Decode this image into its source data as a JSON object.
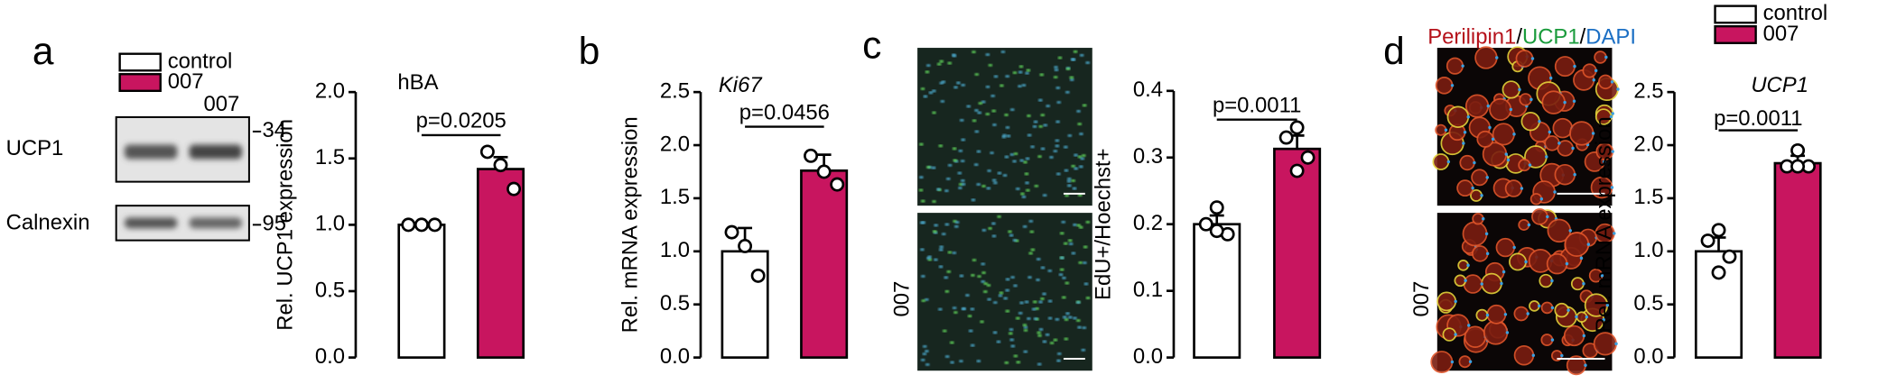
{
  "panel_labels": [
    "a",
    "b",
    "c",
    "d"
  ],
  "groups": [
    "control",
    "007"
  ],
  "group_colors": [
    "#ffffff",
    "#c8155f"
  ],
  "blot": {
    "lane_label": "007",
    "bands": [
      {
        "name": "UCP1",
        "kda": 34
      },
      {
        "name": "Calnexin",
        "kda": 95
      }
    ]
  },
  "micrographs": [
    {
      "row_label": "007"
    },
    {
      "row_label": "007",
      "stain": [
        {
          "text": "Perilipin1",
          "color": "#b5121b"
        },
        {
          "text": "/",
          "color": "#000000"
        },
        {
          "text": "UCP1",
          "color": "#1a9b3c"
        },
        {
          "text": "/",
          "color": "#000000"
        },
        {
          "text": "DAPI",
          "color": "#1b6fc4"
        }
      ]
    }
  ],
  "chart_data": [
    {
      "type": "bar",
      "title": "hBA",
      "title_italic": false,
      "ylabel": "Rel. UCP1 expression",
      "annotation": "p=0.0205",
      "values": [
        1.0,
        1.42
      ],
      "errors": [
        0,
        0.09
      ],
      "points": [
        [
          1.0,
          1.0,
          1.0
        ],
        [
          1.55,
          1.45,
          1.27
        ]
      ],
      "ylim": [
        0,
        2
      ],
      "yticks": [
        {
          "value": 0,
          "label": "0.0"
        },
        0.5,
        {
          "value": 1,
          "label": "1.0"
        },
        1.5,
        {
          "value": 2,
          "label": "2.0"
        }
      ],
      "legend": true
    },
    {
      "type": "bar",
      "title": "Ki67",
      "title_italic": true,
      "ylabel": "Rel. mRNA expression",
      "annotation": "p=0.0456",
      "values": [
        1.0,
        1.76
      ],
      "errors": [
        0.22,
        0.15
      ],
      "points": [
        [
          1.18,
          1.05,
          0.77
        ],
        [
          1.9,
          1.75,
          1.63
        ]
      ],
      "ylim": [
        0,
        2.5
      ],
      "yticks": [
        {
          "value": 0,
          "label": "0.0"
        },
        0.5,
        {
          "value": 1,
          "label": "1.0"
        },
        1.5,
        {
          "value": 2,
          "label": "2.0"
        },
        2.5
      ],
      "legend": false
    },
    {
      "type": "bar",
      "ylabel": "EdU+/Hoechst+",
      "annotation": "p=0.0011",
      "values": [
        0.2,
        0.313
      ],
      "errors": [
        0.013,
        0.02
      ],
      "points": [
        [
          0.225,
          0.2,
          0.185,
          0.19
        ],
        [
          0.345,
          0.33,
          0.3,
          0.28
        ]
      ],
      "ylim": [
        0,
        0.4
      ],
      "yticks": [
        {
          "value": 0,
          "label": "0.0"
        },
        0.1,
        0.2,
        0.3,
        0.4
      ],
      "legend": false
    },
    {
      "type": "bar",
      "title": "UCP1",
      "title_italic": true,
      "ylabel": "Rel. mRNA expression",
      "annotation": "p=0.0011",
      "values": [
        1.0,
        1.83
      ],
      "errors": [
        0.13,
        0.07
      ],
      "points": [
        [
          1.2,
          1.1,
          0.95,
          0.8
        ],
        [
          1.95,
          1.8,
          1.8,
          1.8
        ]
      ],
      "ylim": [
        0,
        2.5
      ],
      "yticks": [
        {
          "value": 0,
          "label": "0.0"
        },
        0.5,
        {
          "value": 1,
          "label": "1.0"
        },
        1.5,
        {
          "value": 2,
          "label": "2.0"
        },
        2.5
      ],
      "legend": true
    }
  ]
}
